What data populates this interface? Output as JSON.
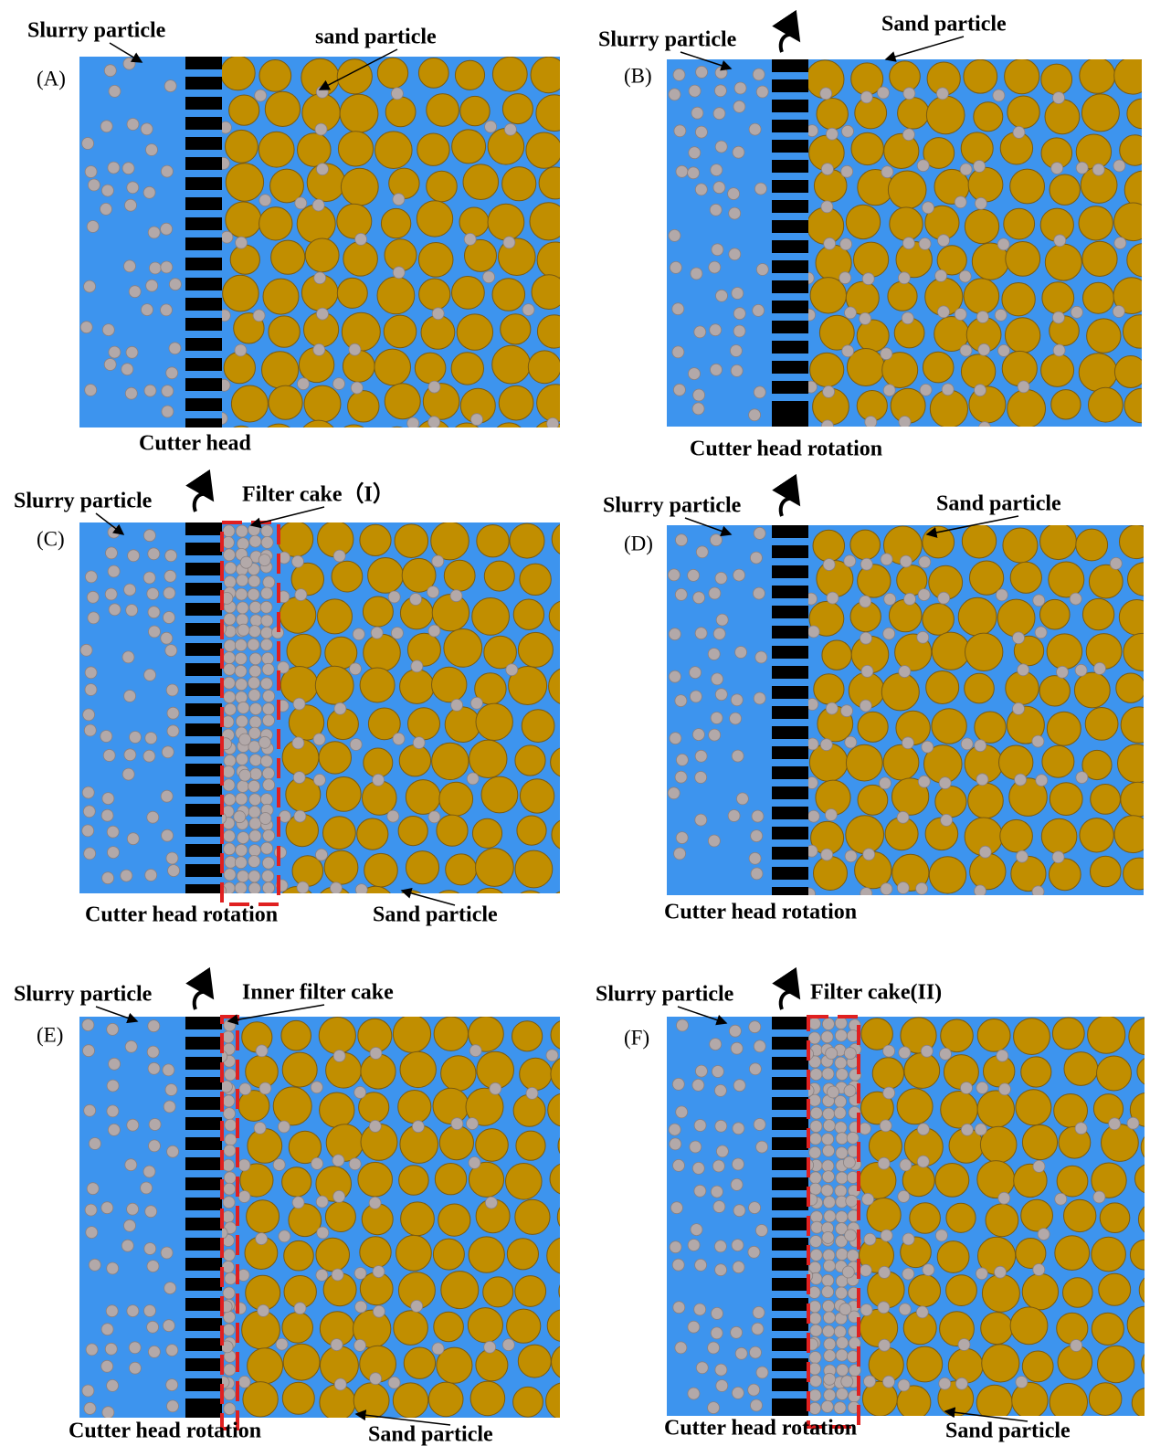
{
  "panels": [
    {
      "label": "(A)",
      "texts": [
        "Slurry particle",
        "sand particle",
        "Cutter head"
      ]
    },
    {
      "label": "(B)",
      "texts": [
        "Slurry particle",
        "Sand particle",
        "Cutter head rotation"
      ]
    },
    {
      "label": "(C)",
      "texts": [
        "Slurry particle",
        "Filter cake（I）",
        "Cutter head rotation",
        "Sand particle"
      ]
    },
    {
      "label": "(D)",
      "texts": [
        "Slurry particle",
        "Sand particle",
        "Cutter head rotation"
      ]
    },
    {
      "label": "(E)",
      "texts": [
        "Slurry particle",
        "Inner filter cake",
        "Cutter head rotation",
        "Sand particle"
      ]
    },
    {
      "label": "(F)",
      "texts": [
        "Slurry particle",
        "Filter cake(II)",
        "Cutter head rotation",
        "Sand particle"
      ]
    }
  ]
}
